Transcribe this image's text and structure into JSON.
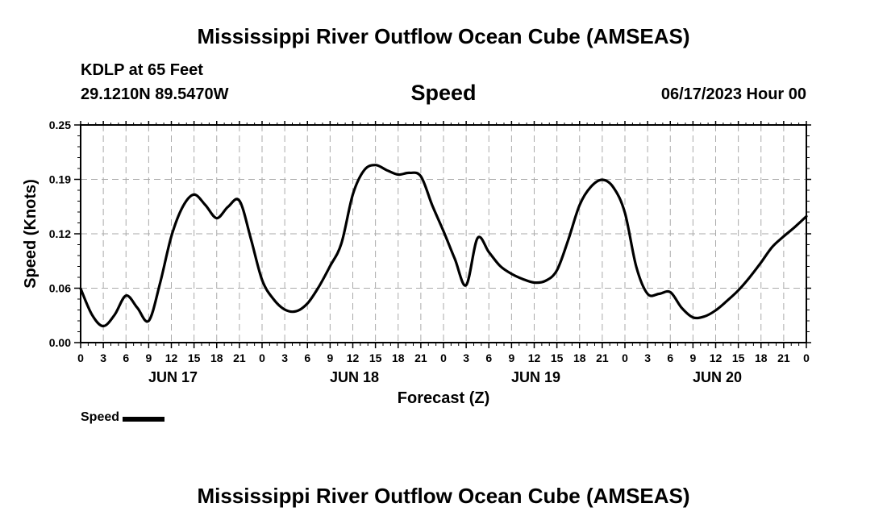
{
  "page": {
    "title": "Mississippi River Outflow Ocean Cube (AMSEAS)",
    "station": "KDLP at 65 Feet",
    "coordinates": "29.1210N  89.5470W",
    "variable": "Speed",
    "datetime": "06/17/2023 Hour 00",
    "footer_title": "Mississippi River Outflow Ocean Cube (AMSEAS)"
  },
  "legend": {
    "label": "Speed",
    "color": "#000000"
  },
  "chart_data": {
    "type": "line",
    "xlabel": "Forecast (Z)",
    "ylabel": "Speed (Knots)",
    "ylim": [
      0,
      0.25
    ],
    "yticks": [
      "0.00",
      "0.06",
      "0.12",
      "0.19",
      "0.25"
    ],
    "xlim_hours": [
      0,
      96
    ],
    "xtick_step_hours": 3,
    "xticks": [
      "0",
      "3",
      "6",
      "9",
      "12",
      "15",
      "18",
      "21",
      "0",
      "3",
      "6",
      "9",
      "12",
      "15",
      "18",
      "21",
      "0",
      "3",
      "6",
      "9",
      "12",
      "15",
      "18",
      "21",
      "0",
      "3",
      "6",
      "9",
      "12",
      "15",
      "18",
      "21",
      "0"
    ],
    "day_labels": [
      {
        "label": "JUN 17",
        "hour": 12
      },
      {
        "label": "JUN 18",
        "hour": 36
      },
      {
        "label": "JUN 19",
        "hour": 60
      },
      {
        "label": "JUN 20",
        "hour": 84
      }
    ],
    "grid": true,
    "legend_position": "bottom-left",
    "series": [
      {
        "name": "Speed",
        "color": "#000000",
        "x": [
          0,
          1.5,
          3,
          4.5,
          6,
          7.5,
          9,
          10.5,
          12,
          13.5,
          15,
          16.5,
          18,
          19.5,
          21,
          22.5,
          24,
          25.5,
          27,
          28.5,
          30,
          31.5,
          33,
          34.5,
          36,
          37.5,
          39,
          40.5,
          42,
          43.5,
          45,
          46.5,
          48,
          49.5,
          51,
          52.5,
          54,
          55.5,
          57,
          58.5,
          60,
          61.5,
          63,
          64.5,
          66,
          67.5,
          69,
          70.5,
          72,
          73.5,
          75,
          76.5,
          78,
          79.5,
          81,
          82.5,
          84,
          85.5,
          87,
          88.5,
          90,
          91.5,
          93,
          94.5,
          96
        ],
        "y": [
          0.062,
          0.032,
          0.019,
          0.032,
          0.054,
          0.04,
          0.025,
          0.068,
          0.122,
          0.156,
          0.17,
          0.158,
          0.143,
          0.156,
          0.163,
          0.12,
          0.072,
          0.05,
          0.038,
          0.036,
          0.045,
          0.064,
          0.088,
          0.114,
          0.17,
          0.198,
          0.204,
          0.198,
          0.193,
          0.195,
          0.191,
          0.158,
          0.128,
          0.096,
          0.066,
          0.12,
          0.104,
          0.088,
          0.079,
          0.073,
          0.069,
          0.071,
          0.083,
          0.118,
          0.158,
          0.179,
          0.187,
          0.178,
          0.149,
          0.087,
          0.056,
          0.056,
          0.058,
          0.04,
          0.029,
          0.03,
          0.037,
          0.048,
          0.06,
          0.075,
          0.092,
          0.11,
          0.122,
          0.133,
          0.145
        ]
      }
    ]
  }
}
